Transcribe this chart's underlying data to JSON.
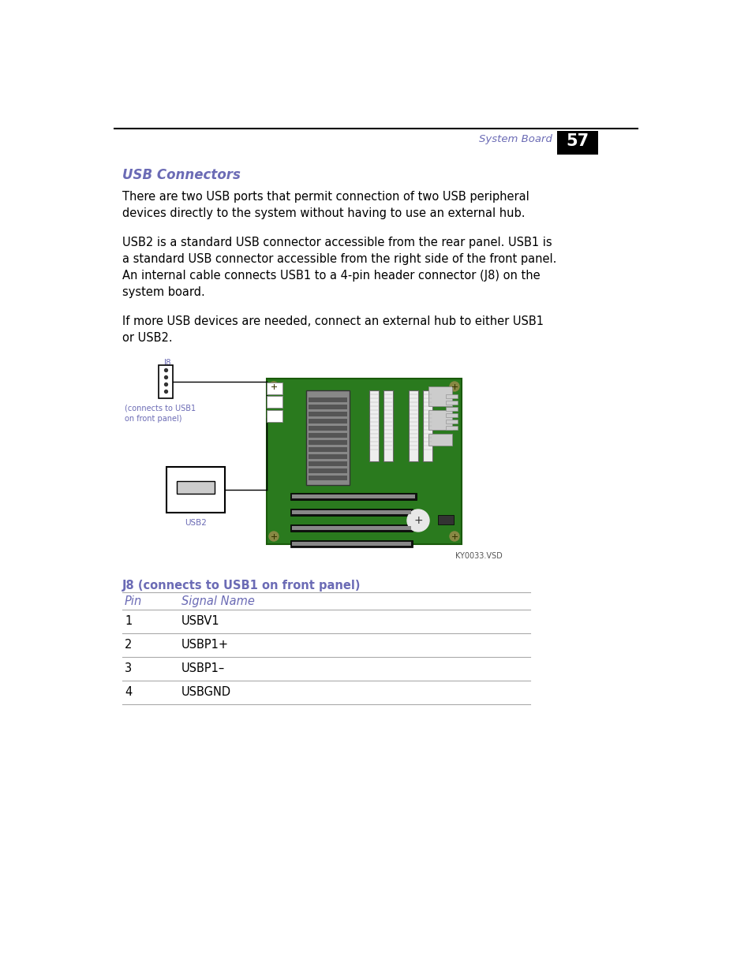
{
  "page_bg": "#ffffff",
  "header_line_color": "#000000",
  "header_text": "System Board",
  "header_text_color": "#6B6BB5",
  "header_num": "57",
  "header_num_bg": "#000000",
  "header_num_color": "#ffffff",
  "section_title": "USB Connectors",
  "section_title_color": "#6B6BB5",
  "para1": "There are two USB ports that permit connection of two USB peripheral\ndevices directly to the system without having to use an external hub.",
  "para2": "USB2 is a standard USB connector accessible from the rear panel. USB1 is\na standard USB connector accessible from the right side of the front panel.\nAn internal cable connects USB1 to a 4-pin header connector (J8) on the\nsystem board.",
  "para3": "If more USB devices are needed, connect an external hub to either USB1\nor USB2.",
  "diagram_label_j8": "J8",
  "diagram_label_j8_color": "#6B6BB5",
  "diagram_label_usb2": "USB2",
  "diagram_label_usb2_color": "#6B6BB5",
  "diagram_label_connects": "(connects to USB1\non front panel)",
  "diagram_label_connects_color": "#6B6BB5",
  "diagram_vsd": "KY0033.VSD",
  "table_title": "J8 (connects to USB1 on front panel)",
  "table_title_color": "#6B6BB5",
  "table_col1": "Pin",
  "table_col2": "Signal Name",
  "table_col_color": "#6B6BB5",
  "table_rows": [
    [
      "1",
      "USBV1"
    ],
    [
      "2",
      "USBP1+"
    ],
    [
      "3",
      "USBP1–"
    ],
    [
      "4",
      "USBGND"
    ]
  ],
  "board_color": "#2a7a1e",
  "text_color": "#000000",
  "font_size_body": 10.5,
  "font_size_table": 10.5
}
